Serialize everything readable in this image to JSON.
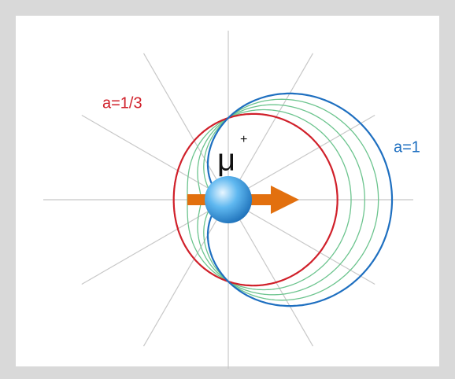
{
  "labels": {
    "red_curve": "a=1/3",
    "blue_curve": "a=1",
    "particle": "μ",
    "charge": "+"
  }
}
